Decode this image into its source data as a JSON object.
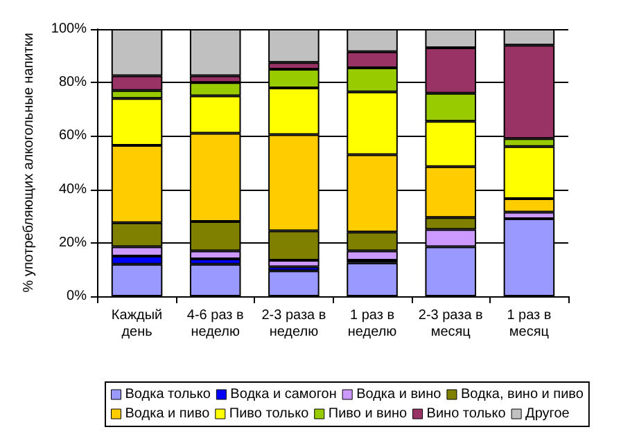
{
  "chart_data": {
    "type": "bar",
    "stacked": true,
    "ylabel": "% употребляющих алкогольные напитки",
    "categories": [
      "Каждый\nдень",
      "4-6 раз в\nнеделю",
      "2-3 раза в\nнеделю",
      "1 раз в\nнеделю",
      "2-3 раза в\nмесяц",
      "1 раз в\nмесяц"
    ],
    "ylim": [
      0,
      100
    ],
    "yticks": [
      {
        "value": 0,
        "label": "0%"
      },
      {
        "value": 20,
        "label": "20%"
      },
      {
        "value": 40,
        "label": "40%"
      },
      {
        "value": 60,
        "label": "60%"
      },
      {
        "value": 80,
        "label": "80%"
      },
      {
        "value": 100,
        "label": "100%"
      }
    ],
    "grid": "y",
    "legend": "bottom",
    "series": [
      {
        "name": "Водка только",
        "color": "#9999ff",
        "values": [
          12,
          12,
          9.5,
          12.5,
          18.5,
          29
        ]
      },
      {
        "name": "Водка и самогон",
        "color": "#0000ff",
        "values": [
          3,
          2,
          1.5,
          1,
          null,
          null
        ]
      },
      {
        "name": "Водка и вино",
        "color": "#cc99ff",
        "values": [
          3.5,
          3,
          2.5,
          3.5,
          6.5,
          2.5
        ]
      },
      {
        "name": "Водка, вино и пиво",
        "color": "#808000",
        "values": [
          9,
          11,
          11,
          7,
          4.5,
          null
        ]
      },
      {
        "name": "Водка и пиво",
        "color": "#ffcc00",
        "values": [
          29,
          33,
          36,
          29,
          19,
          5
        ]
      },
      {
        "name": "Пиво только",
        "color": "#ffff00",
        "values": [
          17.5,
          14,
          17.5,
          23.5,
          17,
          19.5
        ]
      },
      {
        "name": "Пиво и вино",
        "color": "#99cc00",
        "values": [
          3,
          5,
          7,
          9,
          10.5,
          3
        ]
      },
      {
        "name": "Вино только",
        "color": "#993366",
        "values": [
          5.5,
          2.5,
          2.5,
          6,
          17,
          35
        ]
      },
      {
        "name": "Другое",
        "color": "#c0c0c0",
        "values": [
          17.5,
          17.5,
          12.5,
          8.5,
          7,
          6
        ]
      }
    ]
  }
}
